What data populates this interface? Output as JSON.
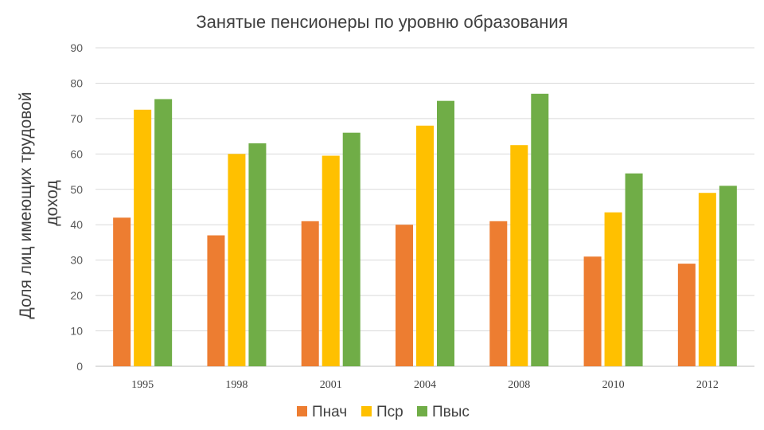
{
  "chart_data": {
    "type": "bar",
    "title": "Занятые пенсионеры по уровню образования",
    "ylabel_lines": [
      "Доля лиц имеющих трудовой",
      "доход"
    ],
    "xlabel": "",
    "categories": [
      "1995",
      "1998",
      "2001",
      "2004",
      "2008",
      "2010",
      "2012"
    ],
    "ylim": [
      0,
      90
    ],
    "yticks": [
      0,
      10,
      20,
      30,
      40,
      50,
      60,
      70,
      80,
      90
    ],
    "grid": true,
    "legend_position": "bottom",
    "series": [
      {
        "name": "Пнач",
        "color": "#ED7D31",
        "values": [
          42,
          37,
          41,
          40,
          41,
          31,
          29
        ]
      },
      {
        "name": "Пср",
        "color": "#FFC000",
        "values": [
          72.5,
          60,
          59.5,
          68,
          62.5,
          43.5,
          49
        ]
      },
      {
        "name": "Пвыс",
        "color": "#70AD47",
        "values": [
          75.5,
          63,
          66,
          75,
          77,
          54.5,
          51
        ]
      }
    ]
  }
}
